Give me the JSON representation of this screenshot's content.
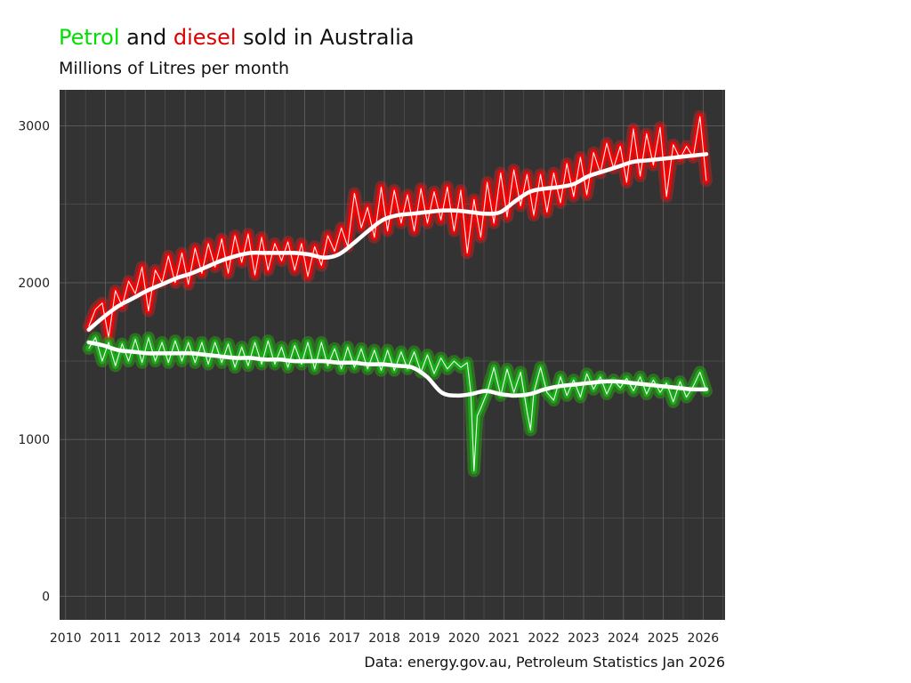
{
  "chart_data": {
    "type": "line",
    "title": {
      "word_petrol": "Petrol",
      "word_and": " and ",
      "word_diesel": "diesel",
      "rest": " sold in Australia"
    },
    "subtitle": "Millions of Litres per month",
    "caption": "Data: energy.gov.au, Petroleum Statistics Jan 2026",
    "xlabel": "",
    "ylabel": "",
    "xlim": [
      2009.85,
      2026.55
    ],
    "ylim": [
      -150,
      3230
    ],
    "x_ticks": [
      2010,
      2011,
      2012,
      2013,
      2014,
      2015,
      2016,
      2017,
      2018,
      2019,
      2020,
      2021,
      2022,
      2023,
      2024,
      2025,
      2026
    ],
    "y_ticks": [
      0,
      1000,
      2000,
      3000
    ],
    "grid": true,
    "legend": "none",
    "colors": {
      "panel_background": "#333333",
      "grid": "#5e5e5e",
      "petrol": "#00ff00",
      "petrol_glow": "#2c9d14",
      "petrol_line": "#18b018",
      "diesel": "#ff0000",
      "diesel_glow": "#ff1a1a",
      "trend": "#ffffff"
    },
    "series": [
      {
        "key": "diesel",
        "x": [
          2010.58,
          2010.75,
          2010.92,
          2011.08,
          2011.25,
          2011.42,
          2011.58,
          2011.75,
          2011.92,
          2012.08,
          2012.25,
          2012.42,
          2012.58,
          2012.75,
          2012.92,
          2013.08,
          2013.25,
          2013.42,
          2013.58,
          2013.75,
          2013.92,
          2014.08,
          2014.25,
          2014.42,
          2014.58,
          2014.75,
          2014.92,
          2015.08,
          2015.25,
          2015.42,
          2015.58,
          2015.75,
          2015.92,
          2016.08,
          2016.25,
          2016.42,
          2016.58,
          2016.75,
          2016.92,
          2017.08,
          2017.25,
          2017.42,
          2017.58,
          2017.75,
          2017.92,
          2018.08,
          2018.25,
          2018.42,
          2018.58,
          2018.75,
          2018.92,
          2019.08,
          2019.25,
          2019.42,
          2019.58,
          2019.75,
          2019.92,
          2020.08,
          2020.25,
          2020.42,
          2020.58,
          2020.75,
          2020.92,
          2021.08,
          2021.25,
          2021.42,
          2021.58,
          2021.75,
          2021.92,
          2022.08,
          2022.25,
          2022.42,
          2022.58,
          2022.75,
          2022.92,
          2023.08,
          2023.25,
          2023.42,
          2023.58,
          2023.75,
          2023.92,
          2024.08,
          2024.25,
          2024.42,
          2024.58,
          2024.75,
          2024.92,
          2025.08,
          2025.25,
          2025.42,
          2025.58,
          2025.75,
          2025.92,
          2026.08
        ],
        "values": [
          1720,
          1830,
          1870,
          1650,
          1950,
          1850,
          2010,
          1930,
          2100,
          1820,
          2080,
          2000,
          2170,
          2000,
          2190,
          1990,
          2220,
          2060,
          2250,
          2100,
          2280,
          2060,
          2300,
          2130,
          2310,
          2050,
          2290,
          2080,
          2250,
          2140,
          2260,
          2080,
          2250,
          2040,
          2230,
          2110,
          2300,
          2200,
          2350,
          2230,
          2570,
          2350,
          2480,
          2290,
          2610,
          2330,
          2590,
          2380,
          2560,
          2330,
          2600,
          2380,
          2580,
          2400,
          2610,
          2330,
          2590,
          2190,
          2530,
          2290,
          2640,
          2380,
          2700,
          2420,
          2720,
          2490,
          2690,
          2430,
          2690,
          2450,
          2700,
          2510,
          2760,
          2550,
          2800,
          2560,
          2830,
          2700,
          2890,
          2730,
          2870,
          2640,
          2980,
          2680,
          2950,
          2750,
          2990,
          2550,
          2880,
          2790,
          2870,
          2800,
          3060,
          2650
        ],
        "trend": [
          1700,
          1780,
          1850,
          1900,
          1950,
          1990,
          2030,
          2060,
          2100,
          2140,
          2170,
          2190,
          2190,
          2190,
          2190,
          2180,
          2160,
          2180,
          2250,
          2330,
          2400,
          2430,
          2440,
          2450,
          2460,
          2460,
          2450,
          2440,
          2450,
          2520,
          2580,
          2600,
          2610,
          2630,
          2680,
          2710,
          2740,
          2770,
          2780,
          2790,
          2800,
          2810,
          2820
        ]
      },
      {
        "key": "petrol",
        "x": [
          2010.58,
          2010.75,
          2010.92,
          2011.08,
          2011.25,
          2011.42,
          2011.58,
          2011.75,
          2011.92,
          2012.08,
          2012.25,
          2012.42,
          2012.58,
          2012.75,
          2012.92,
          2013.08,
          2013.25,
          2013.42,
          2013.58,
          2013.75,
          2013.92,
          2014.08,
          2014.25,
          2014.42,
          2014.58,
          2014.75,
          2014.92,
          2015.08,
          2015.25,
          2015.42,
          2015.58,
          2015.75,
          2015.92,
          2016.08,
          2016.25,
          2016.42,
          2016.58,
          2016.75,
          2016.92,
          2017.08,
          2017.25,
          2017.42,
          2017.58,
          2017.75,
          2017.92,
          2018.08,
          2018.25,
          2018.42,
          2018.58,
          2018.75,
          2018.92,
          2019.08,
          2019.25,
          2019.42,
          2019.58,
          2019.75,
          2019.92,
          2020.08,
          2020.17,
          2020.25,
          2020.33,
          2020.42,
          2020.58,
          2020.75,
          2020.92,
          2021.08,
          2021.25,
          2021.42,
          2021.58,
          2021.67,
          2021.75,
          2021.92,
          2022.08,
          2022.25,
          2022.42,
          2022.58,
          2022.75,
          2022.92,
          2023.08,
          2023.25,
          2023.42,
          2023.58,
          2023.75,
          2023.92,
          2024.08,
          2024.25,
          2024.42,
          2024.58,
          2024.75,
          2024.92,
          2025.08,
          2025.25,
          2025.42,
          2025.58,
          2025.75,
          2025.92,
          2026.08
        ],
        "values": [
          1580,
          1650,
          1500,
          1620,
          1470,
          1610,
          1500,
          1640,
          1490,
          1650,
          1500,
          1620,
          1490,
          1630,
          1500,
          1620,
          1490,
          1620,
          1480,
          1620,
          1490,
          1610,
          1460,
          1590,
          1470,
          1620,
          1480,
          1630,
          1480,
          1590,
          1460,
          1600,
          1480,
          1620,
          1450,
          1620,
          1470,
          1580,
          1450,
          1590,
          1460,
          1580,
          1450,
          1570,
          1440,
          1570,
          1440,
          1560,
          1450,
          1560,
          1430,
          1540,
          1420,
          1520,
          1450,
          1500,
          1460,
          1490,
          1300,
          800,
          1150,
          1200,
          1300,
          1460,
          1280,
          1450,
          1300,
          1430,
          1180,
          1060,
          1300,
          1460,
          1300,
          1250,
          1400,
          1280,
          1380,
          1270,
          1420,
          1320,
          1400,
          1290,
          1380,
          1330,
          1390,
          1310,
          1400,
          1290,
          1380,
          1300,
          1360,
          1240,
          1370,
          1270,
          1340,
          1430,
          1310
        ],
        "trend": [
          1620,
          1600,
          1570,
          1560,
          1550,
          1550,
          1550,
          1550,
          1540,
          1530,
          1520,
          1520,
          1510,
          1510,
          1500,
          1500,
          1500,
          1490,
          1490,
          1480,
          1480,
          1470,
          1460,
          1400,
          1300,
          1280,
          1290,
          1310,
          1290,
          1280,
          1290,
          1320,
          1340,
          1350,
          1360,
          1370,
          1370,
          1360,
          1350,
          1340,
          1330,
          1320,
          1320
        ]
      }
    ]
  }
}
